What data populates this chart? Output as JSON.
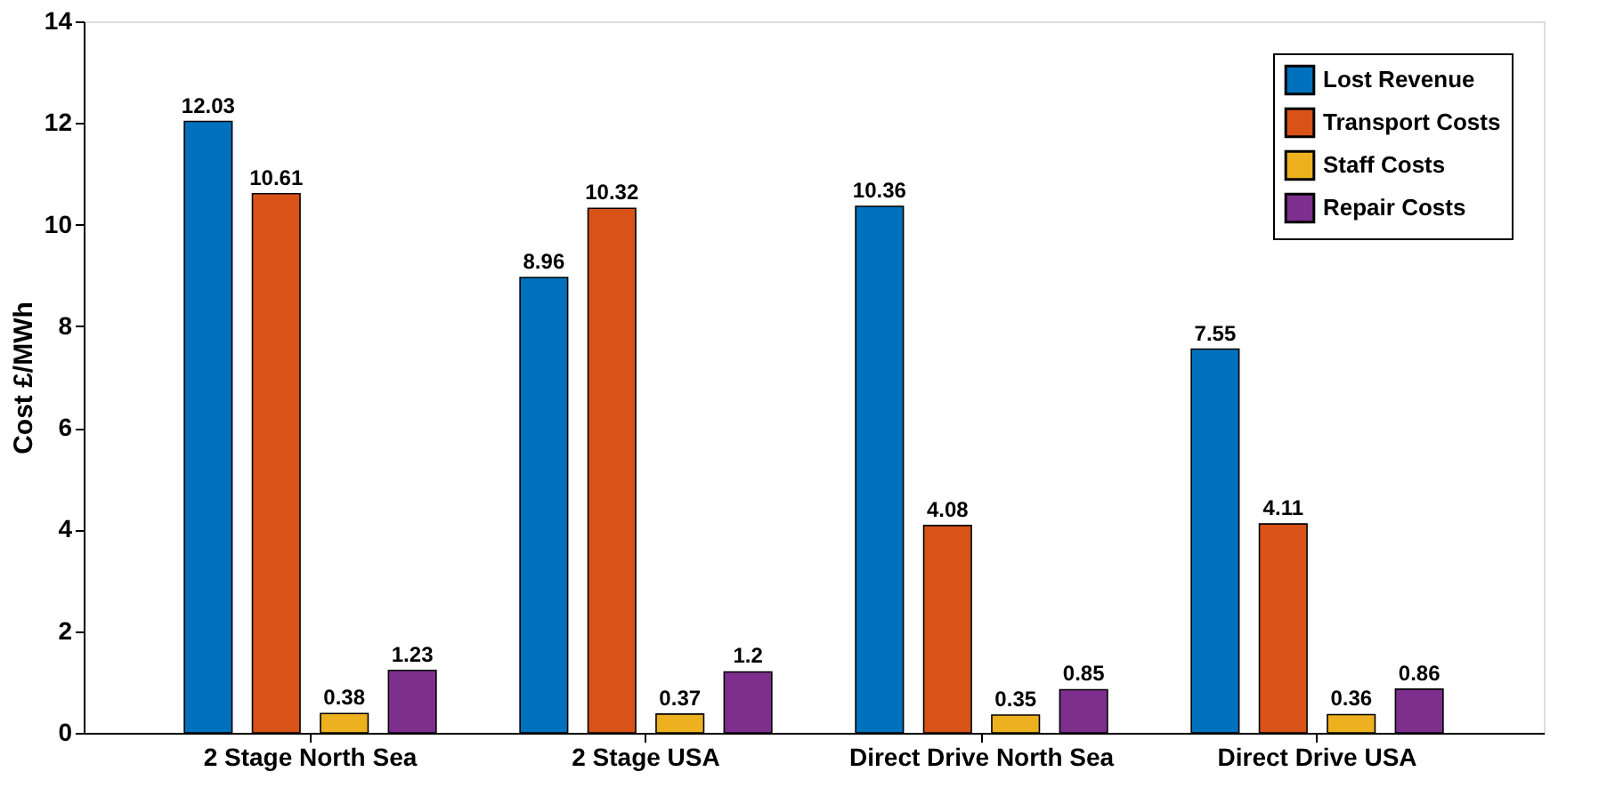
{
  "chart_data": {
    "type": "bar",
    "ylabel": "Cost £/MWh",
    "categories": [
      "2 Stage North Sea",
      "2 Stage USA",
      "Direct Drive North Sea",
      "Direct Drive USA"
    ],
    "series": [
      {
        "name": "Lost Revenue",
        "color": "#0072bd",
        "values": [
          12.03,
          8.96,
          10.36,
          7.55
        ]
      },
      {
        "name": "Transport Costs",
        "color": "#d95319",
        "values": [
          10.61,
          10.32,
          4.08,
          4.11
        ]
      },
      {
        "name": "Staff Costs",
        "color": "#edb120",
        "values": [
          0.38,
          0.37,
          0.35,
          0.36
        ]
      },
      {
        "name": "Repair Costs",
        "color": "#7e2f8e",
        "values": [
          1.23,
          1.2,
          0.85,
          0.86
        ]
      }
    ],
    "ylim": [
      0,
      14
    ],
    "yticks": [
      0,
      2,
      4,
      6,
      8,
      10,
      12,
      14
    ],
    "data_labels": true,
    "legend": "top right",
    "grid": false
  }
}
